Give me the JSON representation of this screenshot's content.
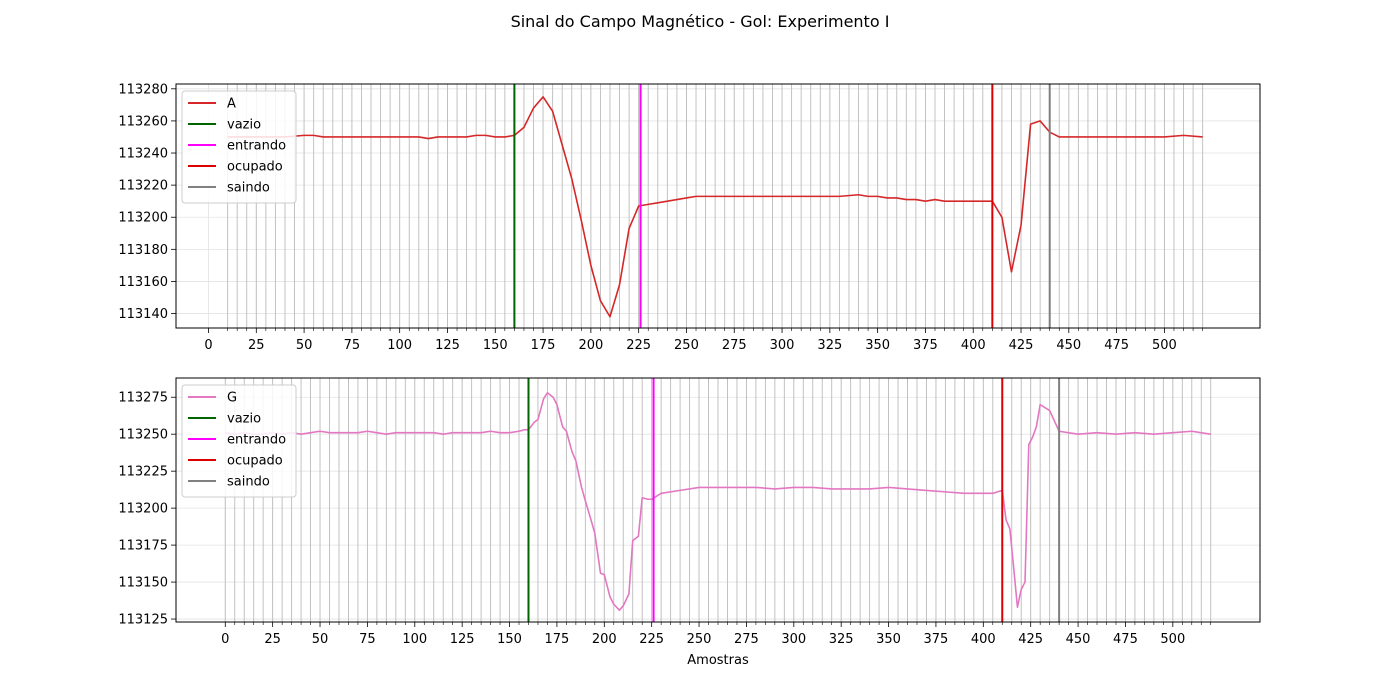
{
  "title": "Sinal do Campo Magnético - Gol: Experimento I",
  "chart_data": [
    {
      "type": "line",
      "series_name": "A",
      "series_color": "#d62728",
      "xlim": [
        -17,
        550
      ],
      "ylim": [
        113131,
        113283
      ],
      "xticks": [
        0,
        25,
        50,
        75,
        100,
        125,
        150,
        175,
        200,
        225,
        250,
        275,
        300,
        325,
        350,
        375,
        400,
        425,
        450,
        475,
        500
      ],
      "yticks": [
        113140,
        113160,
        113180,
        113200,
        113220,
        113240,
        113260,
        113280
      ],
      "xlabel": "",
      "ylabel": "",
      "legend_position": "top-left",
      "grid": true,
      "marker_interval": 5,
      "marker_range": [
        10,
        520
      ],
      "x": [
        10,
        20,
        30,
        40,
        50,
        55,
        60,
        70,
        80,
        90,
        100,
        105,
        110,
        115,
        120,
        125,
        130,
        135,
        140,
        145,
        150,
        155,
        160,
        165,
        170,
        175,
        180,
        185,
        190,
        195,
        200,
        205,
        210,
        215,
        220,
        225,
        230,
        235,
        240,
        245,
        250,
        255,
        260,
        265,
        270,
        275,
        280,
        290,
        300,
        310,
        320,
        330,
        340,
        345,
        350,
        355,
        360,
        365,
        370,
        375,
        380,
        385,
        390,
        395,
        400,
        405,
        410,
        415,
        420,
        425,
        430,
        435,
        440,
        445,
        450,
        460,
        470,
        480,
        490,
        500,
        510,
        520
      ],
      "y": [
        113250,
        113250,
        113250,
        113250,
        113251,
        113251,
        113250,
        113250,
        113250,
        113250,
        113250,
        113250,
        113250,
        113249,
        113250,
        113250,
        113250,
        113250,
        113251,
        113251,
        113250,
        113250,
        113251,
        113256,
        113268,
        113275,
        113266,
        113245,
        113224,
        113198,
        113170,
        113148,
        113138,
        113158,
        113193,
        113207,
        113208,
        113209,
        113210,
        113211,
        113212,
        113213,
        113213,
        113213,
        113213,
        113213,
        113213,
        113213,
        113213,
        113213,
        113213,
        113213,
        113214,
        113213,
        113213,
        113212,
        113212,
        113211,
        113211,
        113210,
        113211,
        113210,
        113210,
        113210,
        113210,
        113210,
        113210,
        113200,
        113166,
        113195,
        113258,
        113260,
        113253,
        113250,
        113250,
        113250,
        113250,
        113250,
        113250,
        113250,
        113251,
        113250
      ],
      "vlines": [
        {
          "label": "vazio",
          "x": 160,
          "color": "#006400"
        },
        {
          "label": "entrando",
          "x": 226,
          "color": "#ff00ff"
        },
        {
          "label": "ocupado",
          "x": 410,
          "color": "#dd0000"
        },
        {
          "label": "saindo",
          "x": 440,
          "color": "#808080"
        }
      ]
    },
    {
      "type": "line",
      "series_name": "G",
      "series_color": "#e377c2",
      "xlim": [
        -26,
        546
      ],
      "ylim": [
        113123,
        113288
      ],
      "xticks": [
        0,
        25,
        50,
        75,
        100,
        125,
        150,
        175,
        200,
        225,
        250,
        275,
        300,
        325,
        350,
        375,
        400,
        425,
        450,
        475,
        500
      ],
      "yticks": [
        113125,
        113150,
        113175,
        113200,
        113225,
        113250,
        113275
      ],
      "xlabel": "Amostras",
      "ylabel": "",
      "legend_position": "top-left",
      "grid": true,
      "marker_interval": 5,
      "marker_range": [
        0,
        520
      ],
      "x": [
        0,
        5,
        10,
        15,
        20,
        25,
        30,
        35,
        40,
        45,
        50,
        55,
        60,
        65,
        70,
        75,
        80,
        85,
        90,
        95,
        100,
        105,
        110,
        115,
        120,
        125,
        130,
        135,
        140,
        145,
        150,
        155,
        158,
        160,
        163,
        165,
        168,
        170,
        173,
        175,
        178,
        180,
        183,
        185,
        188,
        190,
        193,
        195,
        198,
        200,
        203,
        205,
        208,
        210,
        213,
        215,
        218,
        220,
        223,
        225,
        230,
        240,
        250,
        260,
        270,
        280,
        290,
        300,
        310,
        320,
        330,
        340,
        350,
        360,
        370,
        380,
        390,
        400,
        405,
        410,
        412,
        414,
        416,
        418,
        420,
        422,
        424,
        426,
        428,
        430,
        435,
        440,
        450,
        460,
        470,
        480,
        490,
        500,
        510,
        520
      ],
      "y": [
        113251,
        113250,
        113251,
        113250,
        113250,
        113251,
        113250,
        113251,
        113250,
        113251,
        113252,
        113251,
        113251,
        113251,
        113251,
        113252,
        113251,
        113250,
        113251,
        113251,
        113251,
        113251,
        113251,
        113250,
        113251,
        113251,
        113251,
        113251,
        113252,
        113251,
        113251,
        113252,
        113253,
        113253,
        113258,
        113260,
        113274,
        113278,
        113275,
        113270,
        113255,
        113252,
        113238,
        113232,
        113214,
        113205,
        113192,
        113183,
        113156,
        113155,
        113140,
        113135,
        113131,
        113134,
        113142,
        113178,
        113181,
        113207,
        113206,
        113206,
        113210,
        113212,
        113214,
        113214,
        113214,
        113214,
        113213,
        113214,
        113214,
        113213,
        113213,
        113213,
        113214,
        113213,
        113212,
        113211,
        113210,
        113210,
        113210,
        113212,
        113192,
        113186,
        113160,
        113133,
        113145,
        113150,
        113243,
        113248,
        113255,
        113270,
        113266,
        113252,
        113250,
        113251,
        113250,
        113251,
        113250,
        113251,
        113252,
        113250
      ],
      "vlines": [
        {
          "label": "vazio",
          "x": 160,
          "color": "#006400"
        },
        {
          "label": "entrando",
          "x": 226,
          "color": "#ff00ff"
        },
        {
          "label": "ocupado",
          "x": 410,
          "color": "#dd0000"
        },
        {
          "label": "saindo",
          "x": 440,
          "color": "#808080"
        }
      ]
    }
  ]
}
